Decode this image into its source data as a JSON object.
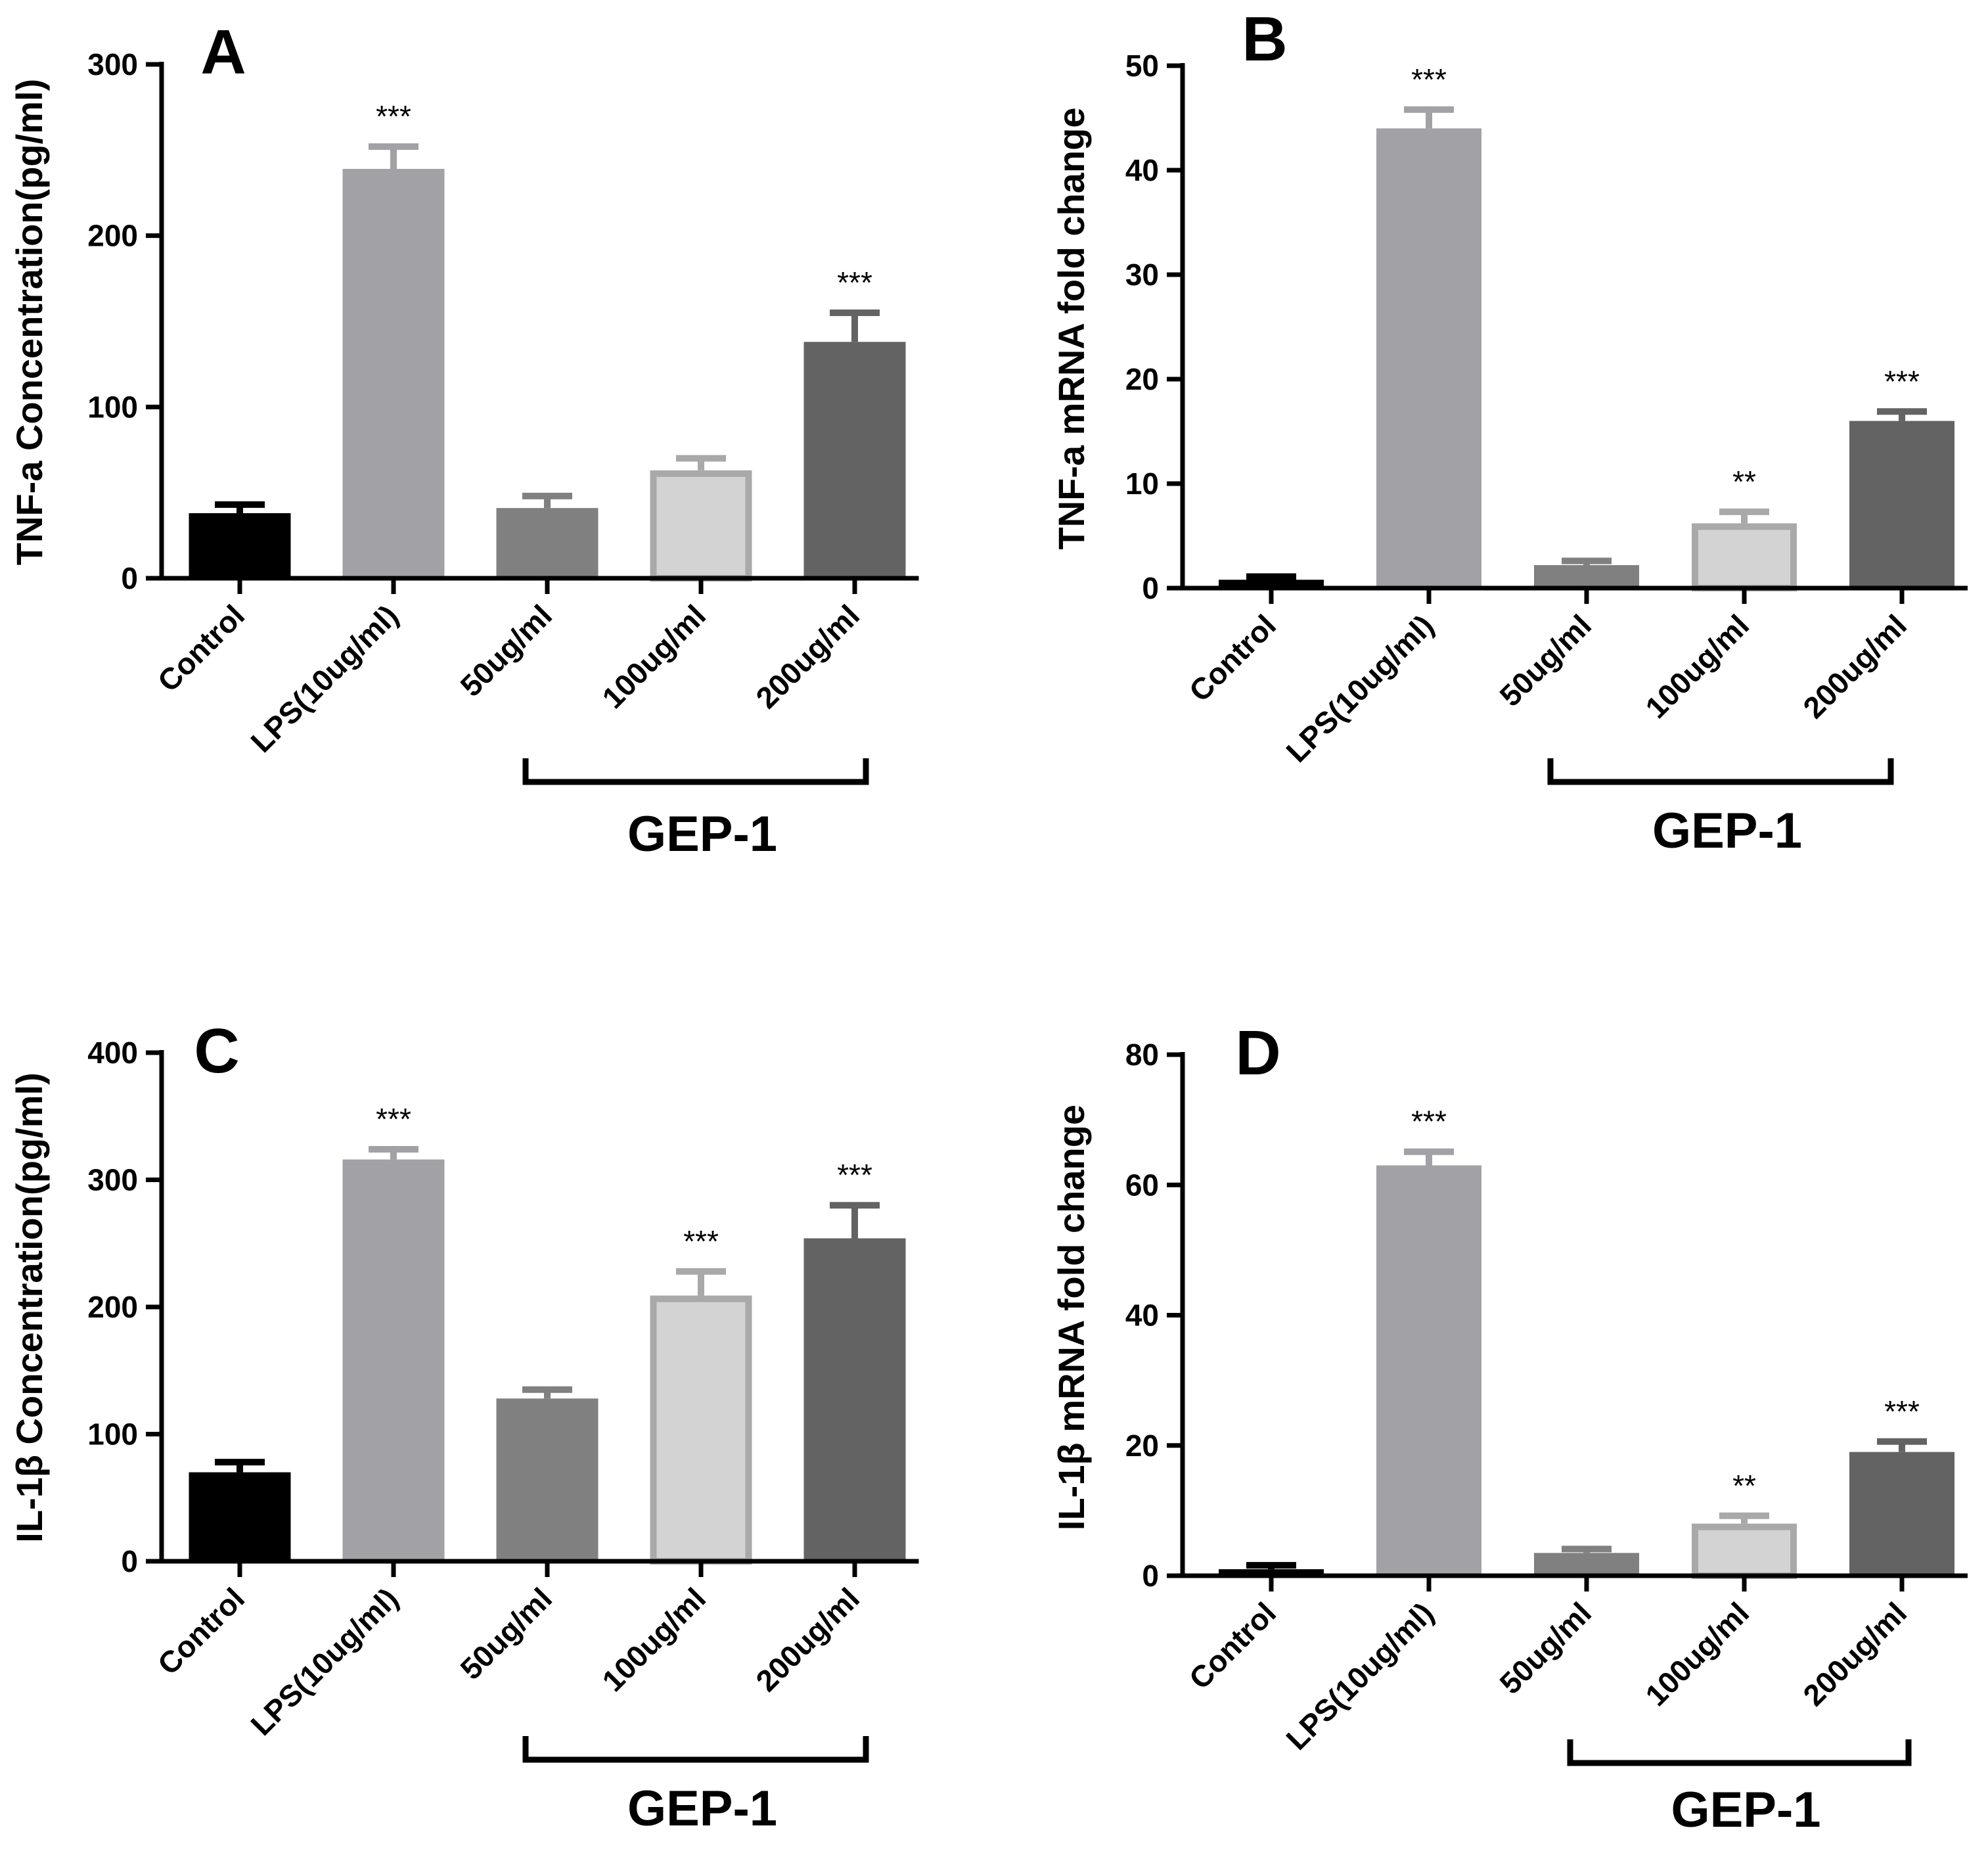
{
  "chart_data": [
    {
      "type": "bar",
      "panel": "A",
      "title": "",
      "ylabel": "TNF-a  Concentration(pg/ml)",
      "ylim": [
        0,
        300
      ],
      "yticks": [
        0,
        100,
        200,
        300
      ],
      "categories": [
        "Control",
        "LPS(10ug/ml)",
        "50ug/ml",
        "100ug/ml",
        "200ug/ml"
      ],
      "values": [
        38,
        239,
        41,
        63,
        138
      ],
      "errors": [
        5,
        13,
        7,
        7,
        17
      ],
      "significance": [
        "",
        "***",
        "",
        "",
        "***"
      ],
      "bar_colors": [
        "#000000",
        "#a2a1a6",
        "#808080",
        "#d3d3d3",
        "#636363"
      ],
      "group_label": "GEP-1"
    },
    {
      "type": "bar",
      "panel": "B",
      "title": "",
      "ylabel": "TNF-a mRNA fold change",
      "ylim": [
        0,
        50
      ],
      "yticks": [
        0,
        10,
        20,
        30,
        40,
        50
      ],
      "categories": [
        "Control",
        "LPS(10ug/ml)",
        "50ug/ml",
        "100ug/ml",
        "200ug/ml"
      ],
      "values": [
        0.8,
        44,
        2.2,
        6.2,
        16
      ],
      "errors": [
        0.3,
        1.8,
        0.4,
        1.1,
        0.9
      ],
      "significance": [
        "",
        "***",
        "",
        "**",
        "***"
      ],
      "bar_colors": [
        "#000000",
        "#a2a1a6",
        "#808080",
        "#d3d3d3",
        "#636363"
      ],
      "group_label": "GEP-1"
    },
    {
      "type": "bar",
      "panel": "C",
      "title": "",
      "ylabel": "IL-1β  Concentration(pg/ml)",
      "ylim": [
        0,
        400
      ],
      "yticks": [
        0,
        100,
        200,
        300,
        400
      ],
      "categories": [
        "Control",
        "LPS(10ug/ml)",
        "50ug/ml",
        "100ug/ml",
        "200ug/ml"
      ],
      "values": [
        70,
        316,
        128,
        209,
        254
      ],
      "errors": [
        8,
        8,
        7,
        19,
        26
      ],
      "significance": [
        "",
        "***",
        "",
        "***",
        "***"
      ],
      "bar_colors": [
        "#000000",
        "#a2a1a6",
        "#808080",
        "#d3d3d3",
        "#636363"
      ],
      "group_label": "GEP-1"
    },
    {
      "type": "bar",
      "panel": "D",
      "title": "",
      "ylabel": "IL-1β mRNA fold change",
      "ylim": [
        0,
        80
      ],
      "yticks": [
        0,
        20,
        40,
        60,
        80
      ],
      "categories": [
        "Control",
        "LPS(10ug/ml)",
        "50ug/ml",
        "100ug/ml",
        "200ug/ml"
      ],
      "values": [
        1,
        63,
        3.5,
        8,
        19
      ],
      "errors": [
        0.6,
        2.1,
        0.6,
        1.2,
        1.6
      ],
      "significance": [
        "",
        "***",
        "",
        "**",
        "***"
      ],
      "bar_colors": [
        "#000000",
        "#a2a1a6",
        "#808080",
        "#d3d3d3",
        "#636363"
      ],
      "group_label": "GEP-1"
    }
  ]
}
